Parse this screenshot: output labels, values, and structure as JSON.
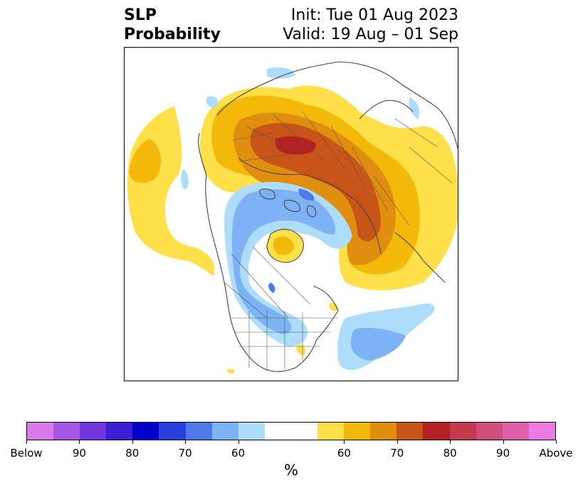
{
  "title": {
    "left_line1": "SLP",
    "left_line2": "Probability",
    "right_line1": "Init: Tue 01 Aug 2023",
    "right_line2": "Valid: 19 Aug – 01 Sep"
  },
  "colorbar": {
    "unit_label": "%",
    "colors": [
      "#d67be8",
      "#a458e3",
      "#7035dc",
      "#3c1fd4",
      "#0000cc",
      "#2a40dd",
      "#4f7ae8",
      "#7db3f5",
      "#aedcfb",
      "#ffffff",
      "#ffffff",
      "#ffe04a",
      "#f3b90a",
      "#e08e10",
      "#c75418",
      "#b32222",
      "#c23a4e",
      "#cf4e7b",
      "#dd60a8",
      "#ea7be0"
    ],
    "tick_labels": [
      "Below",
      "90",
      "80",
      "70",
      "60",
      "60",
      "70",
      "80",
      "90",
      "Above"
    ]
  },
  "map": {
    "projection": "north-polar-stereographic",
    "legend_colors": {
      "below_light": "#aedcfb",
      "below_medium": "#7db3f5",
      "below_dark": "#4f7ae8",
      "above_light": "#ffe04a",
      "above_medium": "#f3b90a",
      "above_strong": "#e08e10",
      "above_darker": "#c75418",
      "above_darkest": "#b32222"
    }
  }
}
